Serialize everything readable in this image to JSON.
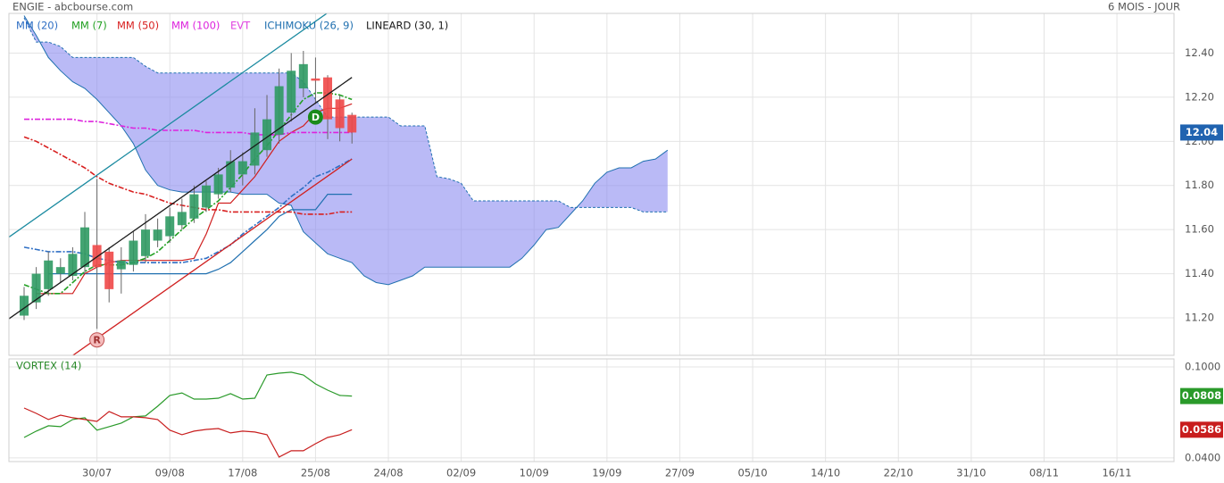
{
  "header": {
    "title": "ENGIE - abcbourse.com",
    "period": "6 MOIS - JOUR"
  },
  "chart_data": [
    {
      "type": "candlestick",
      "xlim": [
        -1.25,
        94.7
      ],
      "xticks": [
        {
          "value": 6,
          "label": "30/07"
        },
        {
          "value": 12,
          "label": "09/08"
        },
        {
          "value": 18,
          "label": "17/08"
        },
        {
          "value": 24,
          "label": "25/08"
        },
        {
          "value": 30,
          "label": "24/08"
        },
        {
          "value": 36,
          "label": "02/09"
        },
        {
          "value": 42,
          "label": "10/09"
        },
        {
          "value": 48,
          "label": "19/09"
        },
        {
          "value": 54,
          "label": "27/09"
        },
        {
          "value": 60,
          "label": "05/10"
        },
        {
          "value": 66,
          "label": "14/10"
        },
        {
          "value": 72,
          "label": "22/10"
        },
        {
          "value": 78,
          "label": "31/10"
        },
        {
          "value": 84,
          "label": "08/11"
        },
        {
          "value": 90,
          "label": "16/11"
        }
      ],
      "ylim": [
        11.03,
        12.58
      ],
      "yticks": [
        {
          "value": 12.4,
          "label": "12.40"
        },
        {
          "value": 12.2,
          "label": "12.20"
        },
        {
          "value": 12,
          "label": "12.00"
        },
        {
          "value": 11.8,
          "label": "11.80"
        },
        {
          "value": 11.6,
          "label": "11.60"
        },
        {
          "value": 11.4,
          "label": "11.40"
        },
        {
          "value": 11.2,
          "label": "11.20"
        }
      ],
      "grid": true,
      "open": [
        11.21,
        11.27,
        11.33,
        11.4,
        11.39,
        11.43,
        11.53,
        11.5,
        11.42,
        11.44,
        11.48,
        11.55,
        11.57,
        11.62,
        11.65,
        11.7,
        11.76,
        11.79,
        11.85,
        11.89,
        11.96,
        12.03,
        12.13,
        12.24,
        12.285,
        12.29,
        12.19,
        12.12
      ],
      "high": [
        11.34,
        11.43,
        11.5,
        11.47,
        11.52,
        11.68,
        11.83,
        11.52,
        11.52,
        11.59,
        11.67,
        11.65,
        11.7,
        11.74,
        11.8,
        11.82,
        11.88,
        11.96,
        11.95,
        12.15,
        12.21,
        12.33,
        12.4,
        12.41,
        12.38,
        12.3,
        12.21,
        12.13
      ],
      "low": [
        11.19,
        11.24,
        11.3,
        11.36,
        11.37,
        11.4,
        11.15,
        11.27,
        11.31,
        11.41,
        11.45,
        11.52,
        11.54,
        11.6,
        11.63,
        11.68,
        11.74,
        11.77,
        11.8,
        11.85,
        11.93,
        11.99,
        12.09,
        12.2,
        12.17,
        12.01,
        12.0,
        11.99
      ],
      "close": [
        11.3,
        11.4,
        11.46,
        11.43,
        11.49,
        11.61,
        11.43,
        11.33,
        11.46,
        11.55,
        11.6,
        11.6,
        11.66,
        11.68,
        11.76,
        11.8,
        11.85,
        11.91,
        11.91,
        12.04,
        12.1,
        12.25,
        12.32,
        12.35,
        12.275,
        12.1,
        12.06,
        12.04
      ],
      "up_color": "#2f9a63",
      "down_color": "#f04848",
      "last_value_color": "#2063b0",
      "series": [
        {
          "name": "MM (20)",
          "color": "#2f6fc4",
          "values": [
            11.52,
            11.51,
            11.5,
            11.5,
            11.5,
            11.49,
            11.47,
            11.46,
            11.45,
            11.45,
            11.45,
            11.45,
            11.45,
            11.45,
            11.46,
            11.47,
            11.5,
            11.53,
            11.58,
            11.62,
            11.66,
            11.7,
            11.75,
            11.79,
            11.84,
            11.86,
            11.89,
            11.92
          ]
        },
        {
          "name": "MM (7)",
          "color": "#22a022",
          "values": [
            11.35,
            11.33,
            11.31,
            11.31,
            11.36,
            11.41,
            11.44,
            11.44,
            11.44,
            11.45,
            11.47,
            11.5,
            11.55,
            11.6,
            11.65,
            11.69,
            11.73,
            11.79,
            11.85,
            11.92,
            11.98,
            12.05,
            12.12,
            12.19,
            12.22,
            12.22,
            12.21,
            12.19
          ]
        },
        {
          "name": "MM (50)",
          "color": "#d82020",
          "values": [
            12.02,
            12.0,
            11.97,
            11.94,
            11.91,
            11.88,
            11.84,
            11.81,
            11.79,
            11.77,
            11.76,
            11.74,
            11.72,
            11.71,
            11.7,
            11.69,
            11.69,
            11.68,
            11.68,
            11.68,
            11.68,
            11.68,
            11.68,
            11.67,
            11.67,
            11.67,
            11.68,
            11.68
          ]
        },
        {
          "name": "MM (100)",
          "color": "#dd22dd",
          "values": [
            12.1,
            12.1,
            12.1,
            12.1,
            12.1,
            12.09,
            12.09,
            12.08,
            12.07,
            12.06,
            12.06,
            12.05,
            12.05,
            12.05,
            12.05,
            12.04,
            12.04,
            12.04,
            12.04,
            12.03,
            12.03,
            12.03,
            12.04,
            12.04,
            12.04,
            12.04,
            12.04,
            12.04
          ]
        }
      ],
      "events": {
        "name": "EVT",
        "color": "#e040e0",
        "x": [
          6,
          24
        ],
        "y": [
          11.1,
          12.11
        ],
        "labels": [
          "R",
          "D"
        ],
        "colors": [
          "#f5bcbc",
          "#1a8a1a"
        ]
      },
      "ichimoku": {
        "name": "ICHIMOKU (26, 9)",
        "color": "#2070b0",
        "tenkan_color": "#d02020",
        "cloud_color": "#8c8cf0",
        "tenkan": [
          null,
          11.31,
          11.31,
          11.31,
          11.31,
          11.4,
          11.43,
          11.45,
          11.46,
          11.46,
          11.46,
          11.46,
          11.46,
          11.46,
          11.47,
          11.58,
          11.72,
          11.72,
          11.78,
          11.84,
          11.92,
          12.0,
          12.04,
          12.07,
          12.13,
          12.15,
          12.15,
          12.17
        ],
        "kijun": [
          null,
          null,
          11.4,
          11.4,
          11.4,
          11.4,
          11.4,
          11.4,
          11.4,
          11.4,
          11.4,
          11.4,
          11.4,
          11.4,
          11.4,
          11.4,
          11.42,
          11.45,
          11.5,
          11.55,
          11.6,
          11.66,
          11.69,
          11.69,
          11.69,
          11.76,
          11.76,
          11.76
        ],
        "span_a": [
          12.57,
          12.48,
          12.38,
          12.32,
          12.27,
          12.24,
          12.19,
          12.13,
          12.07,
          11.99,
          11.87,
          11.8,
          11.78,
          11.77,
          11.77,
          11.77,
          11.77,
          11.77,
          11.76,
          11.76,
          11.76,
          11.72,
          11.71,
          11.59,
          11.54,
          11.49,
          11.47,
          11.45,
          11.39,
          11.36,
          11.35,
          11.37,
          11.39,
          11.43,
          11.43,
          11.43,
          11.43,
          11.43,
          11.43,
          11.43,
          11.43,
          11.47,
          11.53,
          11.6,
          11.61,
          11.67,
          11.73,
          11.81,
          11.86,
          11.88,
          11.88,
          11.91,
          11.92,
          11.96
        ],
        "span_b": [
          12.56,
          12.45,
          12.45,
          12.43,
          12.38,
          12.38,
          12.38,
          12.38,
          12.38,
          12.38,
          12.34,
          12.31,
          12.31,
          12.31,
          12.31,
          12.31,
          12.31,
          12.31,
          12.31,
          12.31,
          12.31,
          12.31,
          12.31,
          12.27,
          12.19,
          12.11,
          12.11,
          12.11,
          12.11,
          12.11,
          12.11,
          12.07,
          12.07,
          12.07,
          11.84,
          11.83,
          11.81,
          11.73,
          11.73,
          11.73,
          11.73,
          11.73,
          11.73,
          11.73,
          11.73,
          11.7,
          11.7,
          11.7,
          11.7,
          11.7,
          11.7,
          11.68,
          11.68,
          11.68
        ]
      },
      "lineard": {
        "name": "LINEARD (30, 1)",
        "color": "#1a1a1a",
        "upper_color": "#1a8aa0",
        "lower_color": "#d02020",
        "x": [
          -1.4,
          27
        ],
        "center": [
          11.19,
          12.29
        ],
        "upper": [
          11.56,
          12.66
        ],
        "lower": [
          10.82,
          11.92
        ]
      }
    },
    {
      "type": "line",
      "title": "VORTEX (14)",
      "title_color": "#2a8a2a",
      "ylim": [
        0.0376,
        0.1053
      ],
      "yticks": [
        {
          "value": 0.1,
          "label": "0.1000"
        },
        {
          "value": 0.04,
          "label": "0.0400"
        }
      ],
      "series": [
        {
          "color": "#2a9a2a",
          "values": [
            0.0535,
            0.0577,
            0.0612,
            0.0606,
            0.0653,
            0.0665,
            0.0583,
            0.0606,
            0.063,
            0.0671,
            0.0677,
            0.0741,
            0.0812,
            0.0829,
            0.0788,
            0.0788,
            0.0794,
            0.0824,
            0.0788,
            0.0794,
            0.0947,
            0.0959,
            0.0965,
            0.0947,
            0.0888,
            0.0847,
            0.0812,
            0.0808
          ]
        },
        {
          "color": "#c81e1e",
          "values": [
            0.0729,
            0.0694,
            0.0653,
            0.0682,
            0.0665,
            0.0653,
            0.0641,
            0.0706,
            0.0671,
            0.0671,
            0.0665,
            0.0653,
            0.0583,
            0.0553,
            0.0577,
            0.0588,
            0.0594,
            0.0565,
            0.0577,
            0.0571,
            0.0553,
            0.0406,
            0.0447,
            0.0447,
            0.0494,
            0.0535,
            0.0553,
            0.0586
          ]
        }
      ]
    }
  ]
}
